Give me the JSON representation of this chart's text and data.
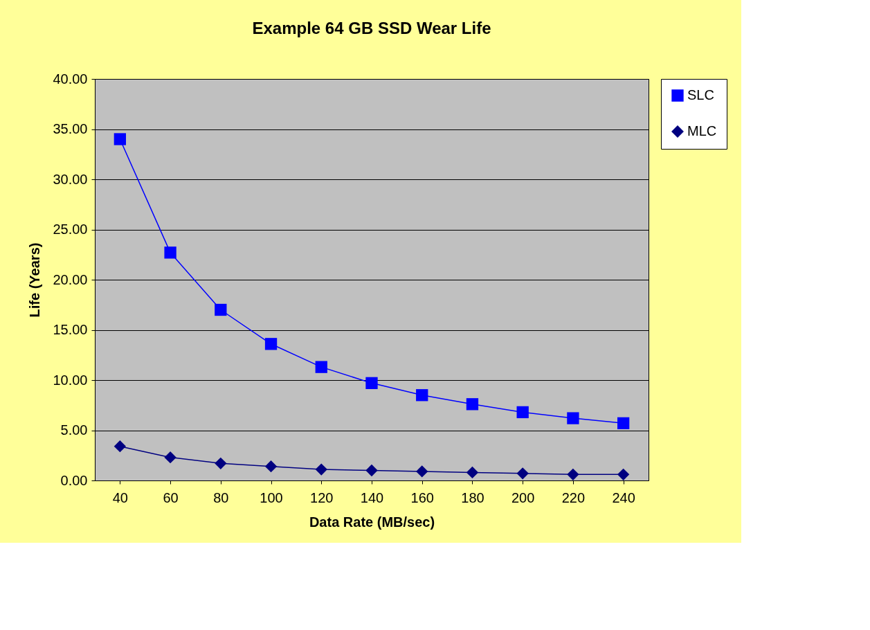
{
  "chart_data": {
    "type": "line",
    "title": "Example 64 GB SSD Wear Life",
    "xlabel": "Data Rate (MB/sec)",
    "ylabel": "Life (Years)",
    "categories": [
      "40",
      "60",
      "80",
      "100",
      "120",
      "140",
      "160",
      "180",
      "200",
      "220",
      "240"
    ],
    "series": [
      {
        "name": "SLC",
        "color": "#0000ff",
        "marker": "square",
        "values": [
          34.0,
          22.7,
          17.0,
          13.6,
          11.3,
          9.7,
          8.5,
          7.6,
          6.8,
          6.2,
          5.7
        ]
      },
      {
        "name": "MLC",
        "color": "#000080",
        "marker": "diamond",
        "values": [
          3.4,
          2.3,
          1.7,
          1.4,
          1.1,
          1.0,
          0.9,
          0.8,
          0.7,
          0.6,
          0.6
        ]
      }
    ],
    "ylim": [
      0,
      40
    ],
    "yticks": [
      {
        "value": 0,
        "label": "0.00"
      },
      {
        "value": 5,
        "label": "5.00"
      },
      {
        "value": 10,
        "label": "10.00"
      },
      {
        "value": 15,
        "label": "15.00"
      },
      {
        "value": 20,
        "label": "20.00"
      },
      {
        "value": 25,
        "label": "25.00"
      },
      {
        "value": 30,
        "label": "30.00"
      },
      {
        "value": 35,
        "label": "35.00"
      },
      {
        "value": 40,
        "label": "40.00"
      }
    ],
    "grid": "y",
    "legend": "right",
    "line_style": "solid"
  }
}
